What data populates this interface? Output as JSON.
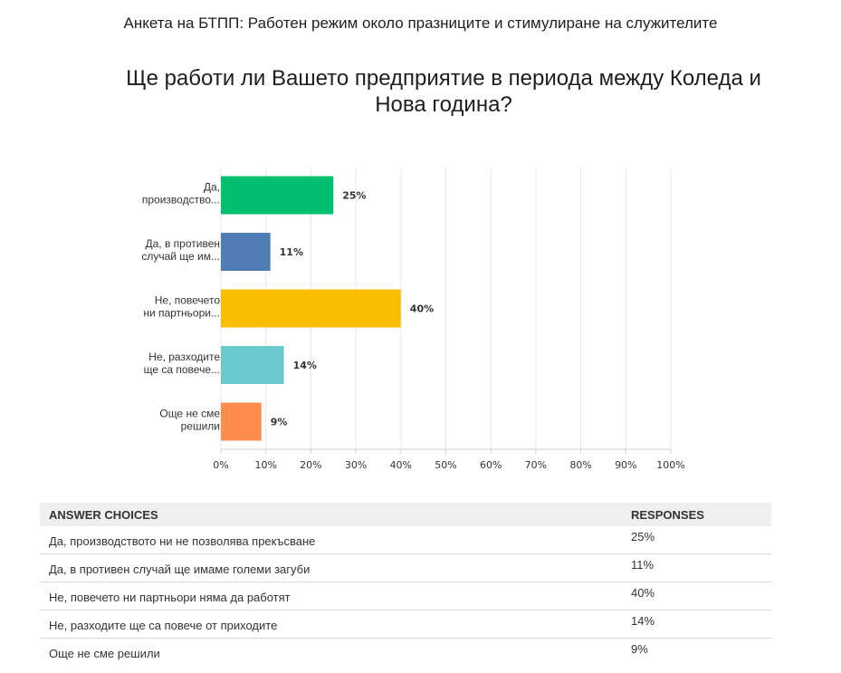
{
  "survey_title": "Анкета на БТПП: Работен режим около празниците и стимулиране на служителите",
  "question": "Ще работи ли Вашето предприятие в периода между Коледа и Нова година?",
  "chart_data": {
    "type": "bar",
    "orientation": "horizontal",
    "categories": [
      [
        "Да,",
        "производство..."
      ],
      [
        "Да, в противен",
        "случай ще им..."
      ],
      [
        "Не, повечето",
        "ни партньори..."
      ],
      [
        "Не, разходите",
        "ще са повече..."
      ],
      [
        "Още не сме",
        "решили"
      ]
    ],
    "values": [
      25,
      11,
      40,
      14,
      9
    ],
    "value_labels": [
      "25%",
      "11%",
      "40%",
      "14%",
      "9%"
    ],
    "colors": [
      "#00bf6f",
      "#507cb6",
      "#f9be00",
      "#6bc8cd",
      "#ff8b4f"
    ],
    "x_ticks": [
      "0%",
      "10%",
      "20%",
      "30%",
      "40%",
      "50%",
      "60%",
      "70%",
      "80%",
      "90%",
      "100%"
    ],
    "xlim": [
      0,
      100
    ],
    "grid": true,
    "grid_color": "#e6e6e6"
  },
  "table": {
    "header": {
      "choices": "ANSWER CHOICES",
      "responses": "RESPONSES"
    },
    "rows": [
      {
        "choice": "Да, производството ни не позволява прекъсване",
        "response": "25%"
      },
      {
        "choice": "Да, в противен случай ще имаме големи загуби",
        "response": "11%"
      },
      {
        "choice": "Не, повечето ни партньори няма да работят",
        "response": "40%"
      },
      {
        "choice": "Не, разходите ще са повече от приходите",
        "response": "14%"
      },
      {
        "choice": "Още не сме решили",
        "response": "9%"
      }
    ]
  }
}
